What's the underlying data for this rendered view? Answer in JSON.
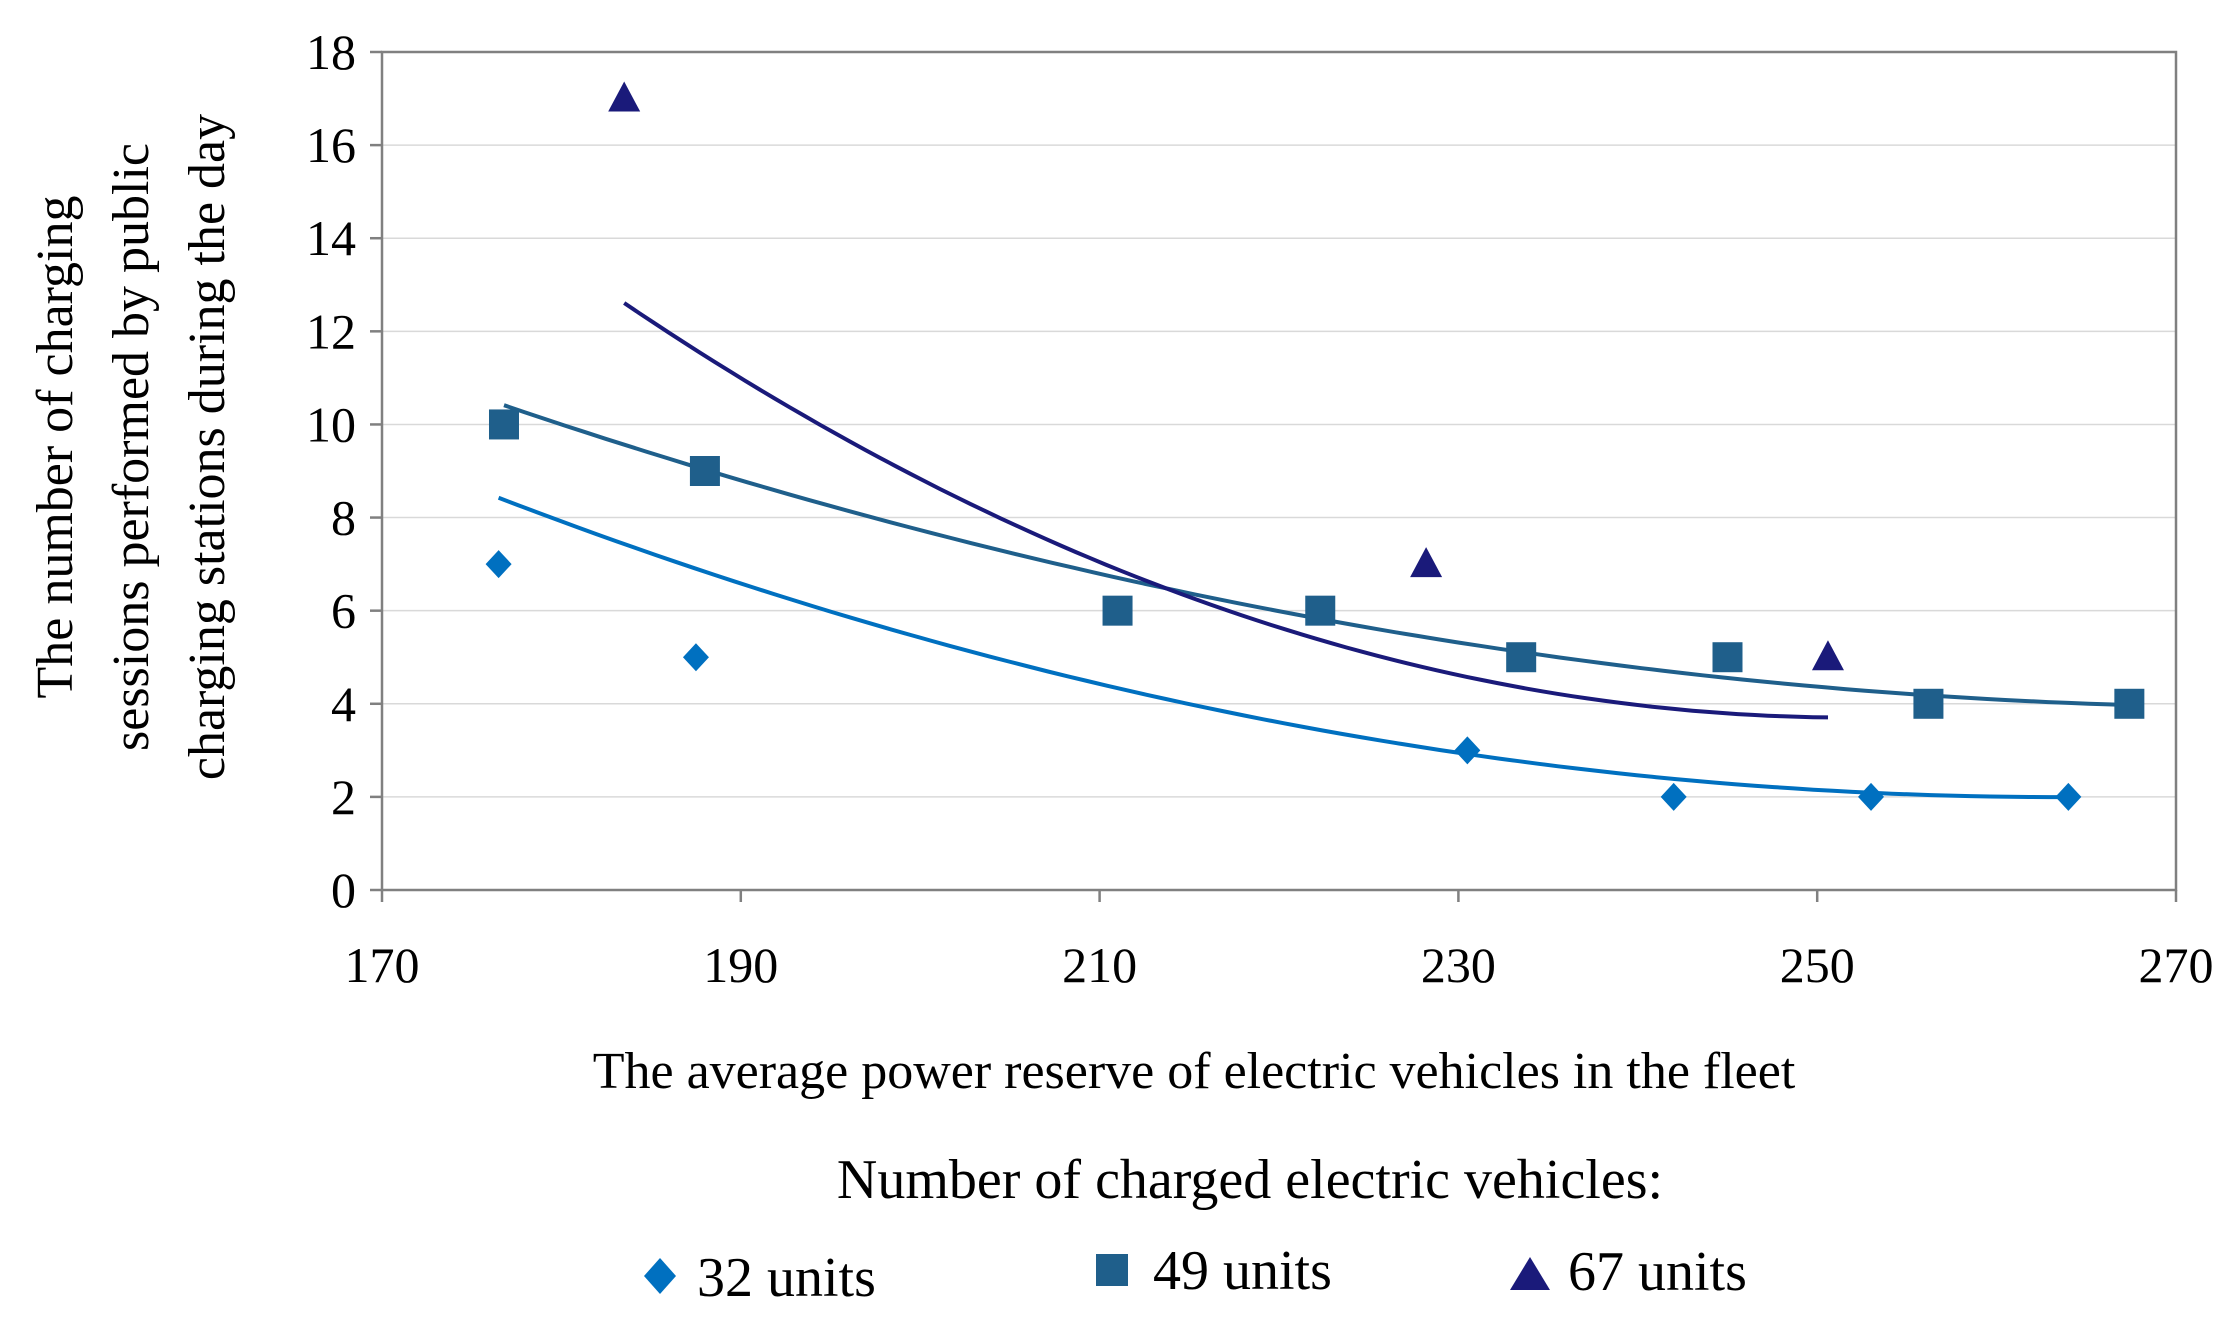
{
  "chart_data": {
    "type": "scatter",
    "title": "",
    "xlabel": "The average power reserve of electric vehicles in the fleet",
    "ylabel_lines": [
      "The number of charging",
      "sessions performed by public",
      "charging stations during the day"
    ],
    "xlim": [
      170,
      270
    ],
    "ylim": [
      0,
      18
    ],
    "x_ticks": [
      170,
      190,
      210,
      230,
      250,
      270
    ],
    "y_ticks": [
      0,
      2,
      4,
      6,
      8,
      10,
      12,
      14,
      16,
      18
    ],
    "grid": "horizontal",
    "legend_title": "Number of charged electric vehicles:",
    "legend_position": "bottom",
    "series": [
      {
        "name": "32 units",
        "marker": "diamond",
        "color": "#0070c0",
        "x": [
          176.5,
          187.5,
          230.5,
          242,
          253,
          264
        ],
        "y": [
          7,
          5,
          3,
          2,
          2,
          2
        ],
        "trend": [
          0.00085,
          -0.4479,
          61.0
        ]
      },
      {
        "name": "49 units",
        "marker": "square",
        "color": "#1f5f8b",
        "x": [
          176.8,
          188,
          211,
          222.3,
          233.5,
          245,
          256.2,
          267.4
        ],
        "y": [
          10,
          9,
          6,
          6,
          5,
          5,
          4,
          4
        ],
        "trend": [
          0.000661,
          -0.3647,
          54.23
        ]
      },
      {
        "name": "67 units",
        "marker": "triangle",
        "color": "#1a1a7a",
        "x": [
          183.5,
          228.2,
          250.6
        ],
        "y": [
          17,
          7,
          5
        ],
        "trend": [
          0.001904,
          -0.9592,
          124.51
        ]
      }
    ]
  }
}
